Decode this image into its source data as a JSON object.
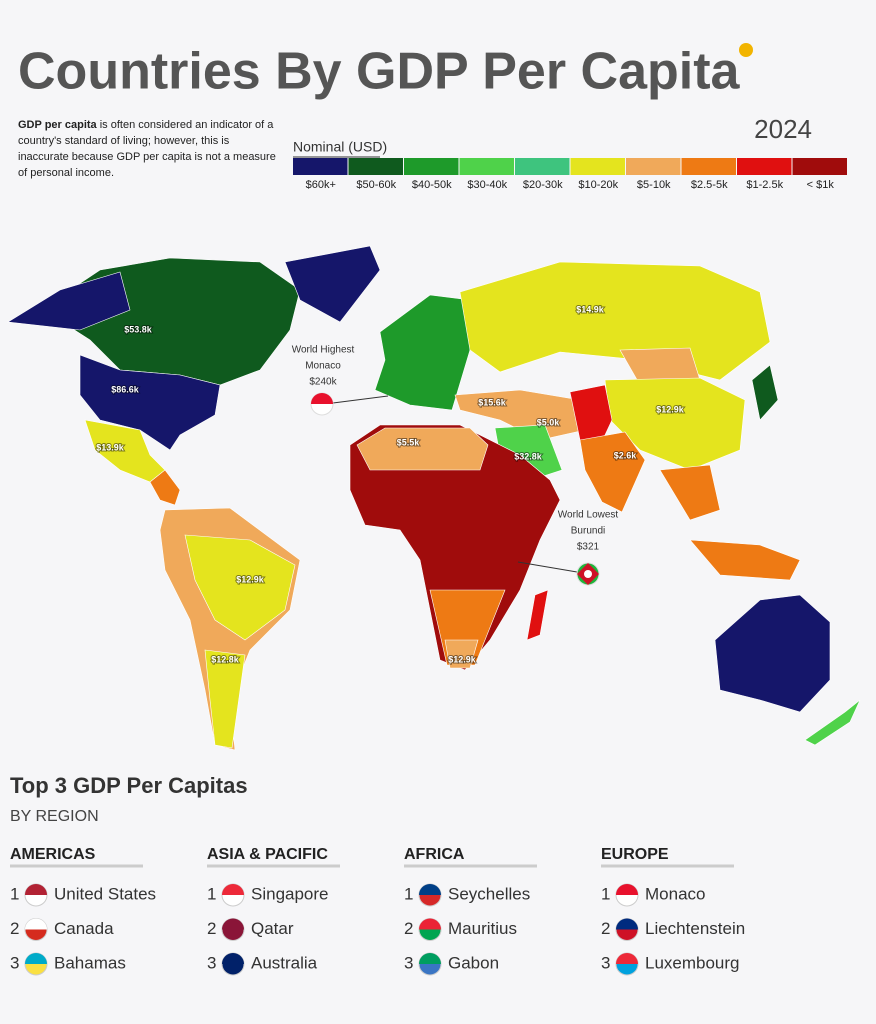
{
  "header": {
    "title": "Countries By GDP Per Capita",
    "year": "2024",
    "intro_bold": "GDP per capita",
    "intro_rest": " is often considered an indicator of a country's standard of living; however, this is inaccurate because GDP per capita is not a measure of personal income."
  },
  "legend": {
    "title": "Nominal (USD)",
    "items": [
      {
        "label": "$60k+",
        "color": "#15166a"
      },
      {
        "label": "$50-60k",
        "color": "#0f5a1e"
      },
      {
        "label": "$40-50k",
        "color": "#1e9a2a"
      },
      {
        "label": "$30-40k",
        "color": "#4fd24a"
      },
      {
        "label": "$20-30k",
        "color": "#3ec47e"
      },
      {
        "label": "$10-20k",
        "color": "#e4e41e"
      },
      {
        "label": "$5-10k",
        "color": "#f0a95a"
      },
      {
        "label": "$2.5-5k",
        "color": "#ee7a14"
      },
      {
        "label": "$1-2.5k",
        "color": "#e01010"
      },
      {
        "label": "< $1k",
        "color": "#a00c0c"
      }
    ]
  },
  "map_labels": [
    "$53.8k",
    "$86.6k",
    "$13.9k",
    "$14.9k",
    "$12.9k",
    "$15.6k",
    "$5.0k",
    "$5.5k",
    "$32.8k",
    "$2.6k",
    "$12.9k",
    "$12.8k",
    "$12.9k"
  ],
  "callouts": {
    "highest": [
      "World Highest",
      "Monaco",
      "$240k"
    ],
    "lowest": [
      "World Lowest",
      "Burundi",
      "$321"
    ]
  },
  "ranking": {
    "title": "Top 3 GDP Per Capitas",
    "subtitle": "BY REGION",
    "regions": [
      {
        "name": "AMERICAS",
        "entries": [
          {
            "rank": "1",
            "country": "United States"
          },
          {
            "rank": "2",
            "country": "Canada"
          },
          {
            "rank": "3",
            "country": "Bahamas"
          }
        ]
      },
      {
        "name": "ASIA & PACIFIC",
        "entries": [
          {
            "rank": "1",
            "country": "Singapore"
          },
          {
            "rank": "2",
            "country": "Qatar"
          },
          {
            "rank": "3",
            "country": "Australia"
          }
        ]
      },
      {
        "name": "AFRICA",
        "entries": [
          {
            "rank": "1",
            "country": "Seychelles"
          },
          {
            "rank": "2",
            "country": "Mauritius"
          },
          {
            "rank": "3",
            "country": "Gabon"
          }
        ]
      },
      {
        "name": "EUROPE",
        "entries": [
          {
            "rank": "1",
            "country": "Monaco"
          },
          {
            "rank": "2",
            "country": "Liechtenstein"
          },
          {
            "rank": "3",
            "country": "Luxembourg"
          }
        ]
      }
    ]
  }
}
